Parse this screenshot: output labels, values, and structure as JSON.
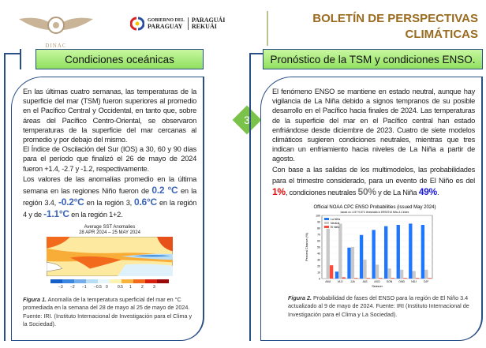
{
  "header": {
    "dinac_label": "DINAC",
    "gov_line1": "GOBIERNO DEL",
    "gov_line2": "PARAGUAY",
    "gov_line3": "PARAGUÁI",
    "gov_line4": "REKUÁI",
    "title_line1": "BOLETÍN DE PERSPECTIVAS",
    "title_line2": "CLIMÁTICAS"
  },
  "left": {
    "heading": "Condiciones oceánicas",
    "p1": "En las últimas cuatro semanas, las temperaturas de la superficie del mar (TSM) fueron superiores al promedio en el Pacífico Central y Occidental, en tanto que, sobre áreas del Pacífico Centro-Oriental, se observaron temperaturas de la superficie del mar cercanas al promedio y por debajo del mismo.",
    "p2": "El Índice de Oscilación del Sur (IOS) a 30, 60 y 90 días para el período que finalizó el 26 de mayo de 2024 fueron +1.4, -2.7 y -1.2, respectivamente.",
    "p3a": "Los valores de las anomalías promedio en la última semana en las regiones Niño fueron de ",
    "v1": "0.2 °C",
    "p3b": " en la región 3.4, ",
    "v2": "-0.2°C",
    "p3c": " en la región 3, ",
    "v3": "0.6°C",
    "p3d": " en la región 4 y de ",
    "v4": "-1.1°C",
    "p3e": " en la región 1+2.",
    "map_title1": "Average SST Anomalies",
    "map_title2": "28 APR 2024 – 25 MAY 2024",
    "colorbar_ticks": [
      "−3",
      "−2",
      "−1",
      "−0.5",
      "0",
      "0.5",
      "1",
      "2",
      "3"
    ],
    "fig_label": "Figura 1.",
    "fig_caption": " Anomalía de la temperatura superficial del mar en °C promediada en la semana del 28 de mayo al 25 de mayo de 2024. Fuente: IRI. (Instituto Internacional de Investigación para el Clima y la Sociedad)."
  },
  "badge": "3",
  "right": {
    "heading": "Pronóstico de la TSM y condiciones ENSO.",
    "p1": "El fenómeno ENSO se mantiene en estado neutral, aunque hay vigilancia de La Niña debido a signos tempranos de su posible desarrollo en el Pacífico hacia finales de 2024. Las temperaturas de la superficie del mar en el Pacífico central han estado enfriándose desde diciembre de 2023. Cuatro de siete modelos climáticos sugieren condiciones neutrales, mientras que tres indican un enfriamiento hacia niveles de La Niña a partir de agosto.",
    "p2a": "Con base a las salidas de los multimodelos, las probabilidades para el trimestre considerado, para un evento de El Niño es del ",
    "nino": "1%",
    "p2b": ", condiciones neutrales ",
    "neutral": "50%",
    "p2c": " y de La Niña ",
    "nina": "49%",
    "p2d": ".",
    "fig_label": "Figura 2.",
    "fig_caption": " Probabilidad de fases del ENSO para la región de El Niño 3.4 actualizado al 9 de mayo de 2024. Fuente: IRI (Instituto Internacional de Investigación para el Clima y La Sociedad)."
  },
  "chart_data": {
    "type": "bar",
    "title": "Official NOAA CPC ENSO Probabilities (issued May 2024)",
    "subtitle": "based on -0.5°/+0.5°C thresholds in ERSSTv5 Niño-3.4 index",
    "xlabel": "Season",
    "ylabel": "Percent Chance (%)",
    "ylim": [
      0,
      100
    ],
    "yticks": [
      "0",
      "10",
      "20",
      "30",
      "40",
      "50",
      "60",
      "70",
      "80",
      "90",
      "100"
    ],
    "categories": [
      "AMJ",
      "MJJ",
      "JJA",
      "JAS",
      "ASO",
      "SON",
      "OND",
      "NDJ",
      "DJF"
    ],
    "series": [
      {
        "name": "La Niña",
        "color": "#1f77ff",
        "values": [
          0,
          11,
          49,
          69,
          77,
          83,
          85,
          87,
          85
        ]
      },
      {
        "name": "Neutral",
        "color": "#c8c8c8",
        "values": [
          79,
          87,
          50,
          30,
          22,
          16,
          14,
          12,
          14
        ]
      },
      {
        "name": "El Niño",
        "color": "#ff4a3a",
        "values": [
          21,
          2,
          1,
          1,
          1,
          1,
          1,
          1,
          1
        ]
      }
    ],
    "legend": "top-left"
  },
  "colors": {
    "accent": "#2a4f86",
    "header_green": "#8fe060",
    "title": "#9a6b1f",
    "badge": "#7bc24a"
  }
}
